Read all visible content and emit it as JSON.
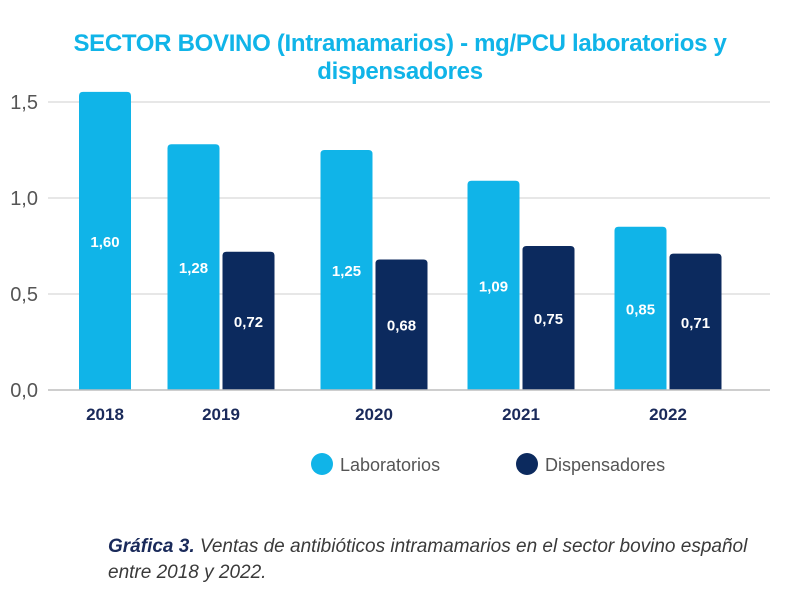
{
  "chart_data": {
    "type": "bar",
    "title": "SECTOR BOVINO (Intramamarios) - mg/PCU laboratorios y dispensadores",
    "categories": [
      "2018",
      "2019",
      "2020",
      "2021",
      "2022"
    ],
    "series": [
      {
        "name": "Laboratorios",
        "color": "#10b4e8",
        "values": [
          1.6,
          1.28,
          1.25,
          1.09,
          0.85
        ],
        "labels": [
          "1,60",
          "1,28",
          "1,25",
          "1,09",
          "0,85"
        ]
      },
      {
        "name": "Dispensadores",
        "color": "#0c2a5e",
        "values": [
          null,
          0.72,
          0.68,
          0.75,
          0.71
        ],
        "labels": [
          "",
          "0,72",
          "0,68",
          "0,75",
          "0,71"
        ]
      }
    ],
    "yticks": [
      "0,0",
      "0,5",
      "1,0",
      "1,5"
    ],
    "ylim": [
      0,
      1.5
    ],
    "grid": true,
    "legend": "bottom"
  },
  "caption": {
    "label": "Gráfica 3.",
    "text": " Ventas de antibióticos intramamarios en el sector bovino español entre 2018  y 2022."
  }
}
